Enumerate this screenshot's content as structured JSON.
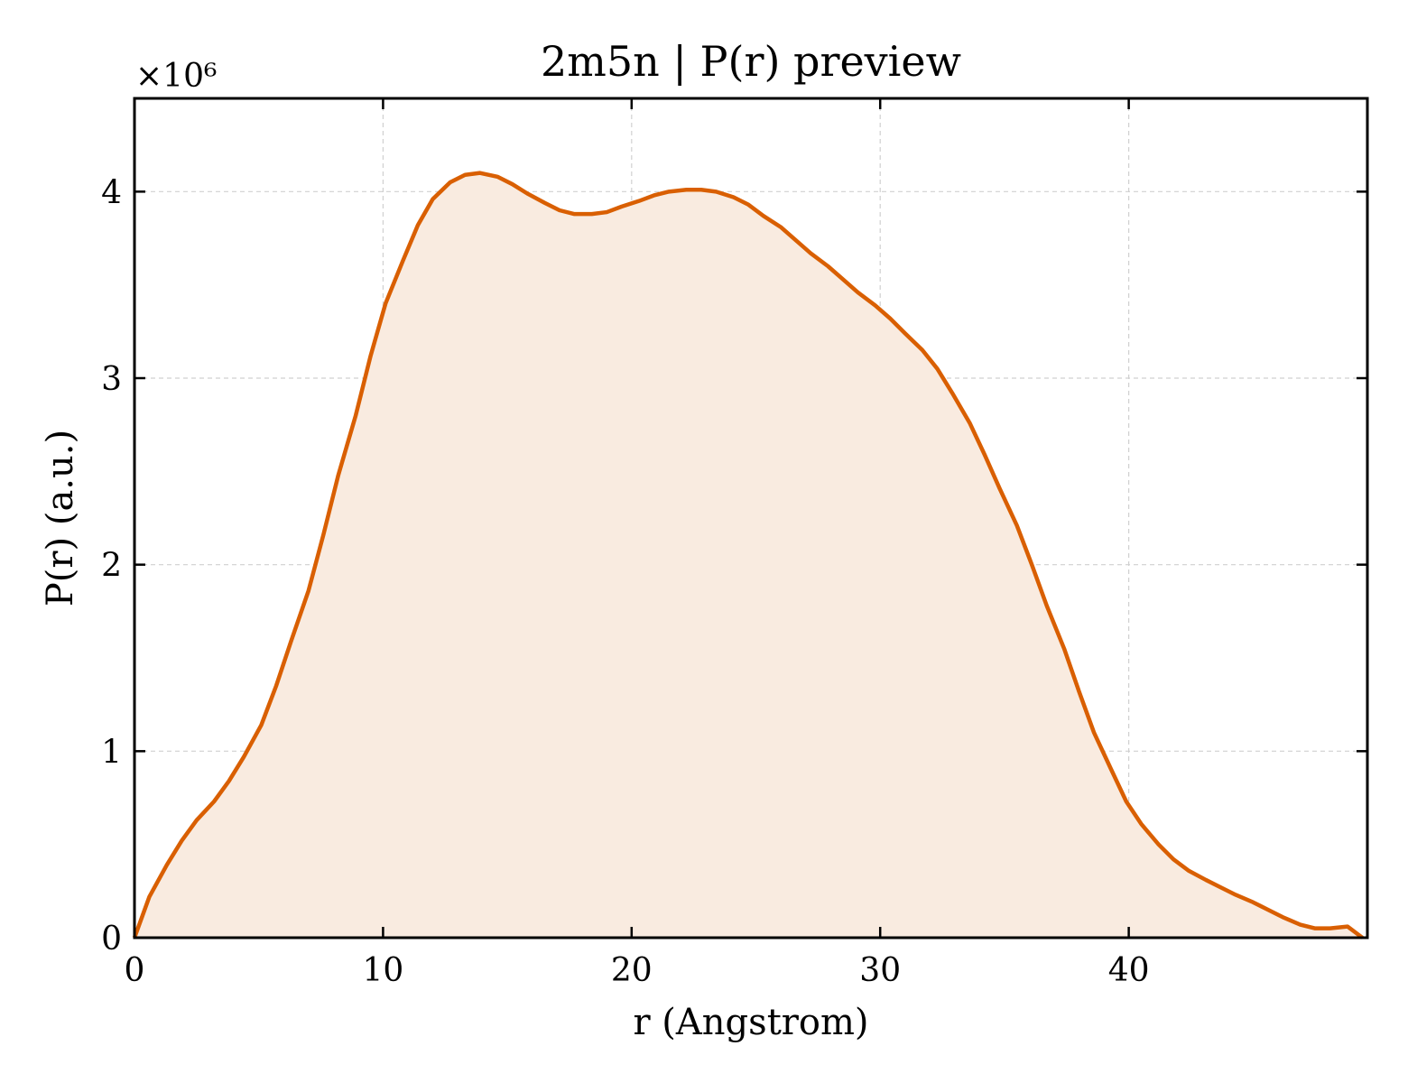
{
  "chart_data": {
    "type": "area",
    "title": "2m5n | P(r) preview",
    "xlabel": "r (Angstrom)",
    "ylabel": "P(r) (a.u.)",
    "y_multiplier_label": "×10⁶",
    "xlim": [
      0,
      49.6
    ],
    "ylim": [
      0,
      4.5
    ],
    "xticks": [
      0,
      10,
      20,
      30,
      40
    ],
    "yticks": [
      0,
      1,
      2,
      3,
      4
    ],
    "xtick_labels": [
      "0",
      "10",
      "20",
      "30",
      "40"
    ],
    "ytick_labels": [
      "0",
      "1",
      "2",
      "3",
      "4"
    ],
    "grid": true,
    "line_color": "#d95f02",
    "fill_color": "#f9ebe0",
    "series": [
      {
        "x": [
          0,
          0.6,
          1.3,
          1.9,
          2.5,
          3.2,
          3.8,
          4.4,
          5.1,
          5.7,
          6.3,
          7.0,
          7.6,
          8.2,
          8.9,
          9.5,
          10.1,
          10.8,
          11.4,
          12.0,
          12.7,
          13.3,
          13.9,
          14.6,
          15.2,
          15.8,
          16.5,
          17.1,
          17.7,
          18.4,
          19.0,
          19.6,
          20.3,
          20.9,
          21.5,
          22.2,
          22.8,
          23.4,
          24.1,
          24.7,
          25.3,
          26.0,
          26.6,
          27.2,
          27.9,
          28.5,
          29.1,
          29.8,
          30.4,
          31.0,
          31.7,
          32.3,
          32.9,
          33.6,
          34.2,
          34.8,
          35.5,
          36.1,
          36.7,
          37.4,
          38.0,
          38.6,
          39.3,
          39.9,
          40.5,
          41.2,
          41.8,
          42.4,
          43.1,
          43.7,
          44.3,
          45.0,
          45.6,
          46.2,
          46.9,
          47.5,
          48.1,
          48.8,
          49.4
        ],
        "y": [
          0.0,
          0.22,
          0.39,
          0.52,
          0.63,
          0.73,
          0.84,
          0.97,
          1.14,
          1.35,
          1.59,
          1.86,
          2.16,
          2.48,
          2.8,
          3.12,
          3.4,
          3.63,
          3.82,
          3.96,
          4.05,
          4.09,
          4.1,
          4.08,
          4.04,
          3.99,
          3.94,
          3.9,
          3.88,
          3.88,
          3.89,
          3.92,
          3.95,
          3.98,
          4.0,
          4.01,
          4.01,
          4.0,
          3.97,
          3.93,
          3.87,
          3.81,
          3.74,
          3.67,
          3.6,
          3.53,
          3.46,
          3.39,
          3.32,
          3.24,
          3.15,
          3.05,
          2.92,
          2.76,
          2.59,
          2.41,
          2.21,
          2.0,
          1.78,
          1.55,
          1.32,
          1.1,
          0.9,
          0.73,
          0.61,
          0.5,
          0.42,
          0.36,
          0.31,
          0.27,
          0.23,
          0.19,
          0.15,
          0.11,
          0.07,
          0.05,
          0.05,
          0.06,
          0.0
        ]
      }
    ]
  }
}
